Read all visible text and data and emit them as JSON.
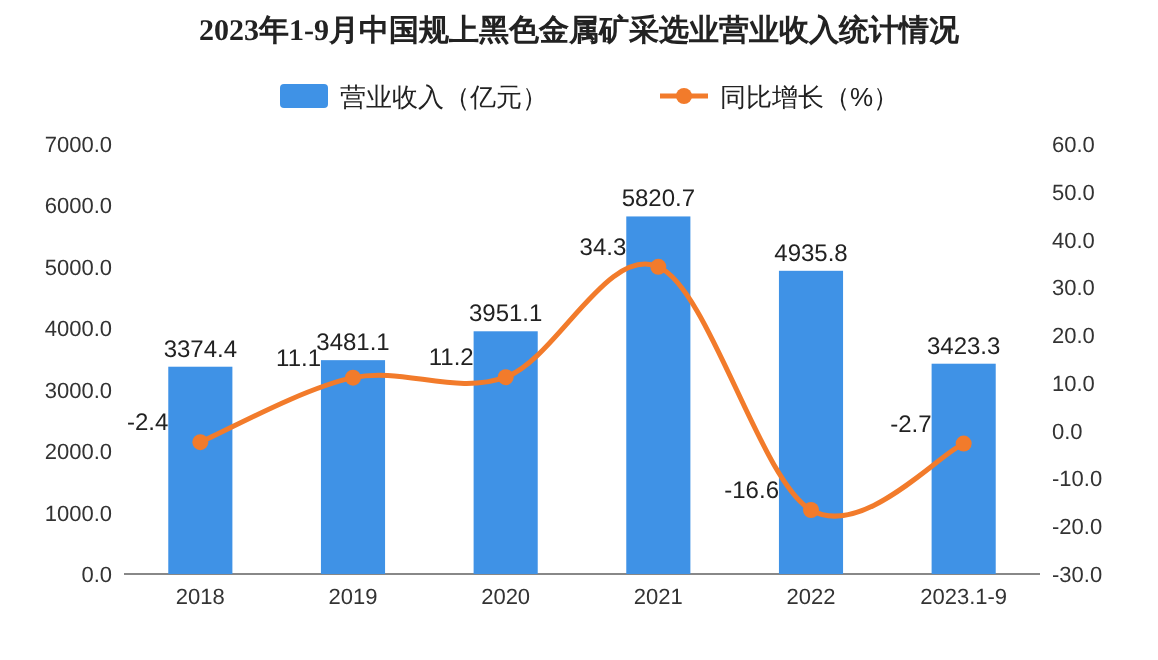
{
  "chart_data": {
    "type": "bar",
    "title": "2023年1-9月中国规上黑色金属矿采选业营业收入统计情况",
    "categories": [
      "2018",
      "2019",
      "2020",
      "2021",
      "2022",
      "2023.1-9"
    ],
    "series": [
      {
        "name": "营业收入（亿元）",
        "color": "#3f92e6",
        "values": [
          3374.4,
          3481.1,
          3951.1,
          5820.7,
          4935.8,
          3423.3
        ]
      },
      {
        "name": "同比增长（%）",
        "type": "line",
        "axis": "y2",
        "color": "#f27b2b",
        "marker": "circle",
        "values": [
          -2.4,
          11.1,
          11.2,
          34.3,
          -16.6,
          -2.7
        ]
      }
    ],
    "ylim": [
      0,
      7000
    ],
    "yticks": [
      {
        "value": 0,
        "label": "0.0"
      },
      {
        "value": 1000,
        "label": "1000.0"
      },
      {
        "value": 2000,
        "label": "2000.0"
      },
      {
        "value": 3000,
        "label": "3000.0"
      },
      {
        "value": 4000,
        "label": "4000.0"
      },
      {
        "value": 5000,
        "label": "5000.0"
      },
      {
        "value": 6000,
        "label": "6000.0"
      },
      {
        "value": 7000,
        "label": "7000.0"
      }
    ],
    "y2lim": [
      -30,
      60
    ],
    "y2ticks": [
      {
        "value": -30,
        "label": "-30.0"
      },
      {
        "value": -20,
        "label": "-20.0"
      },
      {
        "value": -10,
        "label": "-10.0"
      },
      {
        "value": 0,
        "label": "0.0"
      },
      {
        "value": 10,
        "label": "10.0"
      },
      {
        "value": 20,
        "label": "20.0"
      },
      {
        "value": 30,
        "label": "30.0"
      },
      {
        "value": 40,
        "label": "40.0"
      },
      {
        "value": 50,
        "label": "50.0"
      },
      {
        "value": 60,
        "label": "60.0"
      }
    ],
    "data_labels": true,
    "legend": "top",
    "grid": false
  }
}
